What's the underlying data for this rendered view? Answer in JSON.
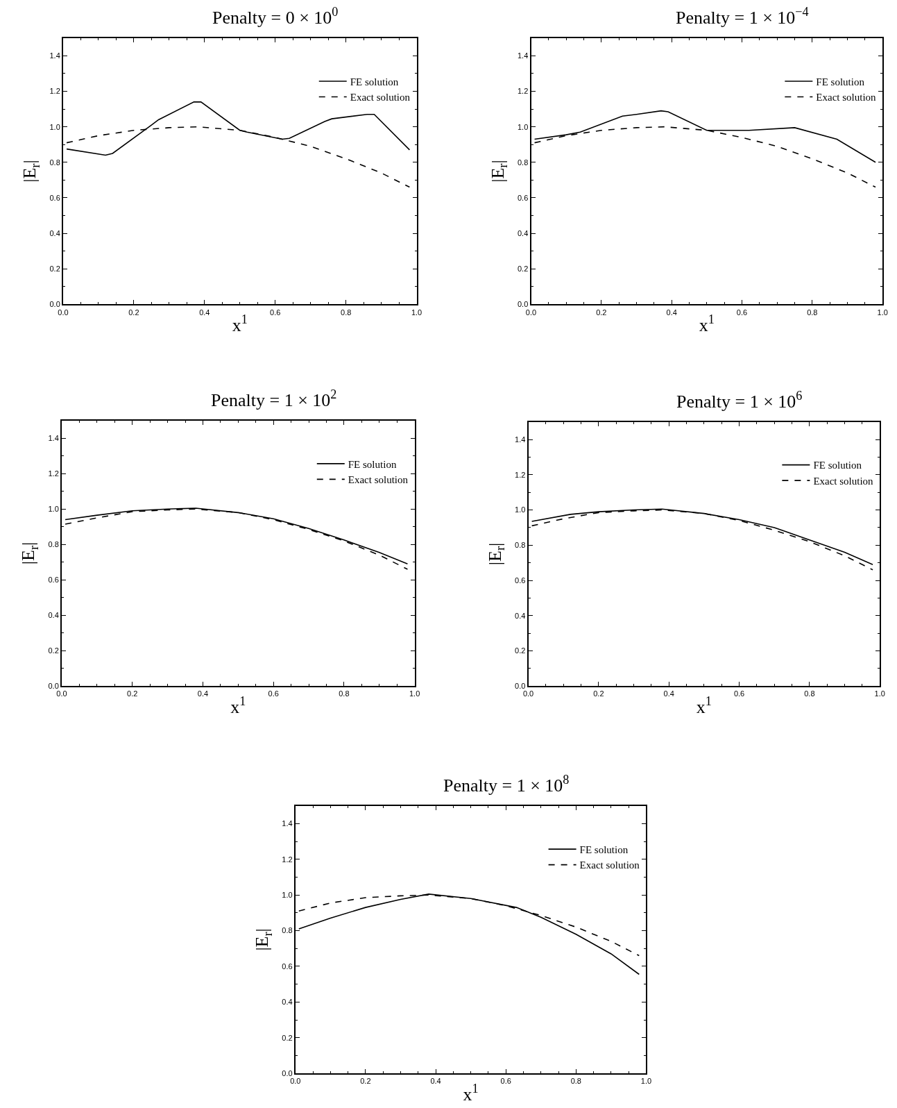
{
  "chart_data": [
    {
      "type": "line",
      "title": "Penalty = 0 × 10$^{0}$",
      "xlabel": "x$^{1}$",
      "ylabel": "|E$_{r}$|",
      "xlim": [
        0,
        1
      ],
      "ylim": [
        0,
        1.5
      ],
      "xticks": [
        {
          "value": 0,
          "label": "0.0"
        },
        {
          "value": 0.2,
          "label": "0.2"
        },
        {
          "value": 0.4,
          "label": "0.4"
        },
        {
          "value": 0.6,
          "label": "0.6"
        },
        {
          "value": 0.8,
          "label": "0.8"
        },
        {
          "value": 1,
          "label": "1.0"
        }
      ],
      "yticks": [
        {
          "value": 0,
          "label": "0.0"
        },
        {
          "value": 0.2,
          "label": "0.2"
        },
        {
          "value": 0.4,
          "label": "0.4"
        },
        {
          "value": 0.6,
          "label": "0.6"
        },
        {
          "value": 0.8,
          "label": "0.8"
        },
        {
          "value": 1,
          "label": "1.0"
        },
        {
          "value": 1.2,
          "label": "1.2"
        },
        {
          "value": 1.4,
          "label": "1.4"
        }
      ],
      "legend": "top right",
      "series": [
        {
          "name": "FE solution",
          "color": "#000000",
          "line_style": "solid",
          "x": [
            0.01,
            0.12,
            0.14,
            0.25,
            0.27,
            0.37,
            0.39,
            0.5,
            0.52,
            0.62,
            0.64,
            0.74,
            0.76,
            0.86,
            0.88,
            0.98
          ],
          "values": [
            0.875,
            0.84,
            0.85,
            1.01,
            1.04,
            1.14,
            1.14,
            0.98,
            0.97,
            0.93,
            0.935,
            1.03,
            1.045,
            1.07,
            1.07,
            0.87
          ]
        },
        {
          "name": "Exact solution",
          "color": "#000000",
          "line_style": "dashed",
          "x": [
            0.01,
            0.1,
            0.2,
            0.3,
            0.38,
            0.5,
            0.6,
            0.7,
            0.8,
            0.9,
            0.98
          ],
          "values": [
            0.91,
            0.95,
            0.98,
            0.995,
            1.0,
            0.98,
            0.94,
            0.89,
            0.82,
            0.74,
            0.66
          ]
        }
      ]
    },
    {
      "type": "line",
      "title": "Penalty = 1 × 10$^{−4}$",
      "xlabel": "x$^{1}$",
      "ylabel": "|E$_{r}$|",
      "xlim": [
        0,
        1
      ],
      "ylim": [
        0,
        1.5
      ],
      "xticks": [
        {
          "value": 0,
          "label": "0.0"
        },
        {
          "value": 0.2,
          "label": "0.2"
        },
        {
          "value": 0.4,
          "label": "0.4"
        },
        {
          "value": 0.6,
          "label": "0.6"
        },
        {
          "value": 0.8,
          "label": "0.8"
        },
        {
          "value": 1,
          "label": "1.0"
        }
      ],
      "yticks": [
        {
          "value": 0,
          "label": "0.0"
        },
        {
          "value": 0.2,
          "label": "0.2"
        },
        {
          "value": 0.4,
          "label": "0.4"
        },
        {
          "value": 0.6,
          "label": "0.6"
        },
        {
          "value": 0.8,
          "label": "0.8"
        },
        {
          "value": 1,
          "label": "1.0"
        },
        {
          "value": 1.2,
          "label": "1.2"
        },
        {
          "value": 1.4,
          "label": "1.4"
        }
      ],
      "legend": "top right",
      "series": [
        {
          "name": "FE solution",
          "color": "#000000",
          "line_style": "solid",
          "x": [
            0.01,
            0.1,
            0.14,
            0.26,
            0.3,
            0.37,
            0.39,
            0.5,
            0.62,
            0.75,
            0.87,
            0.98
          ],
          "values": [
            0.93,
            0.955,
            0.97,
            1.06,
            1.07,
            1.09,
            1.085,
            0.98,
            0.98,
            0.995,
            0.93,
            0.8
          ]
        },
        {
          "name": "Exact solution",
          "color": "#000000",
          "line_style": "dashed",
          "x": [
            0.01,
            0.1,
            0.2,
            0.3,
            0.38,
            0.5,
            0.6,
            0.7,
            0.8,
            0.9,
            0.98
          ],
          "values": [
            0.91,
            0.95,
            0.98,
            0.995,
            1.0,
            0.98,
            0.94,
            0.89,
            0.82,
            0.74,
            0.66
          ]
        }
      ]
    },
    {
      "type": "line",
      "title": "Penalty = 1 × 10$^{2}$",
      "xlabel": "x$^{1}$",
      "ylabel": "|E$_{r}$|",
      "xlim": [
        0,
        1
      ],
      "ylim": [
        0,
        1.5
      ],
      "xticks": [
        {
          "value": 0,
          "label": "0.0"
        },
        {
          "value": 0.2,
          "label": "0.2"
        },
        {
          "value": 0.4,
          "label": "0.4"
        },
        {
          "value": 0.6,
          "label": "0.6"
        },
        {
          "value": 0.8,
          "label": "0.8"
        },
        {
          "value": 1,
          "label": "1.0"
        }
      ],
      "yticks": [
        {
          "value": 0,
          "label": "0.0"
        },
        {
          "value": 0.2,
          "label": "0.2"
        },
        {
          "value": 0.4,
          "label": "0.4"
        },
        {
          "value": 0.6,
          "label": "0.6"
        },
        {
          "value": 0.8,
          "label": "0.8"
        },
        {
          "value": 1,
          "label": "1.0"
        },
        {
          "value": 1.2,
          "label": "1.2"
        },
        {
          "value": 1.4,
          "label": "1.4"
        }
      ],
      "legend": "top right",
      "series": [
        {
          "name": "FE solution",
          "color": "#000000",
          "line_style": "solid",
          "x": [
            0.01,
            0.1,
            0.2,
            0.3,
            0.38,
            0.5,
            0.6,
            0.7,
            0.8,
            0.9,
            0.98
          ],
          "values": [
            0.94,
            0.965,
            0.99,
            1.0,
            1.005,
            0.98,
            0.945,
            0.89,
            0.825,
            0.755,
            0.69
          ]
        },
        {
          "name": "Exact solution",
          "color": "#000000",
          "line_style": "dashed",
          "x": [
            0.01,
            0.1,
            0.2,
            0.3,
            0.38,
            0.5,
            0.6,
            0.7,
            0.8,
            0.9,
            0.98
          ],
          "values": [
            0.915,
            0.95,
            0.985,
            0.995,
            1.0,
            0.98,
            0.94,
            0.885,
            0.82,
            0.74,
            0.66
          ]
        }
      ]
    },
    {
      "type": "line",
      "title": "Penalty = 1 × 10$^{6}$",
      "xlabel": "x$^{1}$",
      "ylabel": "|E$_{r}$|",
      "xlim": [
        0,
        1
      ],
      "ylim": [
        0,
        1.5
      ],
      "xticks": [
        {
          "value": 0,
          "label": "0.0"
        },
        {
          "value": 0.2,
          "label": "0.2"
        },
        {
          "value": 0.4,
          "label": "0.4"
        },
        {
          "value": 0.6,
          "label": "0.6"
        },
        {
          "value": 0.8,
          "label": "0.8"
        },
        {
          "value": 1,
          "label": "1.0"
        }
      ],
      "yticks": [
        {
          "value": 0,
          "label": "0.0"
        },
        {
          "value": 0.2,
          "label": "0.2"
        },
        {
          "value": 0.4,
          "label": "0.4"
        },
        {
          "value": 0.6,
          "label": "0.6"
        },
        {
          "value": 0.8,
          "label": "0.8"
        },
        {
          "value": 1,
          "label": "1.0"
        },
        {
          "value": 1.2,
          "label": "1.2"
        },
        {
          "value": 1.4,
          "label": "1.4"
        }
      ],
      "legend": "top right",
      "series": [
        {
          "name": "FE solution",
          "color": "#000000",
          "line_style": "solid",
          "x": [
            0.01,
            0.12,
            0.2,
            0.3,
            0.38,
            0.5,
            0.6,
            0.7,
            0.8,
            0.9,
            0.98
          ],
          "values": [
            0.935,
            0.975,
            0.99,
            1.0,
            1.005,
            0.98,
            0.945,
            0.9,
            0.83,
            0.76,
            0.69
          ]
        },
        {
          "name": "Exact solution",
          "color": "#000000",
          "line_style": "dashed",
          "x": [
            0.01,
            0.1,
            0.2,
            0.3,
            0.38,
            0.5,
            0.6,
            0.7,
            0.8,
            0.9,
            0.98
          ],
          "values": [
            0.91,
            0.95,
            0.985,
            0.995,
            1.0,
            0.98,
            0.94,
            0.885,
            0.82,
            0.74,
            0.66
          ]
        }
      ]
    },
    {
      "type": "line",
      "title": "Penalty = 1 × 10$^{8}$",
      "xlabel": "x$^{1}$",
      "ylabel": "|E$_{r}$|",
      "xlim": [
        0,
        1
      ],
      "ylim": [
        0,
        1.5
      ],
      "xticks": [
        {
          "value": 0,
          "label": "0.0"
        },
        {
          "value": 0.2,
          "label": "0.2"
        },
        {
          "value": 0.4,
          "label": "0.4"
        },
        {
          "value": 0.6,
          "label": "0.6"
        },
        {
          "value": 0.8,
          "label": "0.8"
        },
        {
          "value": 1,
          "label": "1.0"
        }
      ],
      "yticks": [
        {
          "value": 0,
          "label": "0.0"
        },
        {
          "value": 0.2,
          "label": "0.2"
        },
        {
          "value": 0.4,
          "label": "0.4"
        },
        {
          "value": 0.6,
          "label": "0.6"
        },
        {
          "value": 0.8,
          "label": "0.8"
        },
        {
          "value": 1,
          "label": "1.0"
        },
        {
          "value": 1.2,
          "label": "1.2"
        },
        {
          "value": 1.4,
          "label": "1.4"
        }
      ],
      "legend": "top right",
      "series": [
        {
          "name": "FE solution",
          "color": "#000000",
          "line_style": "solid",
          "x": [
            0.01,
            0.1,
            0.2,
            0.3,
            0.38,
            0.5,
            0.63,
            0.7,
            0.8,
            0.9,
            0.98
          ],
          "values": [
            0.81,
            0.87,
            0.93,
            0.975,
            1.005,
            0.98,
            0.93,
            0.875,
            0.78,
            0.67,
            0.555
          ]
        },
        {
          "name": "Exact solution",
          "color": "#000000",
          "line_style": "dashed",
          "x": [
            0.01,
            0.1,
            0.2,
            0.3,
            0.38,
            0.5,
            0.6,
            0.7,
            0.8,
            0.9,
            0.98
          ],
          "values": [
            0.91,
            0.955,
            0.985,
            0.995,
            1.0,
            0.98,
            0.94,
            0.885,
            0.82,
            0.74,
            0.66
          ]
        }
      ]
    }
  ]
}
